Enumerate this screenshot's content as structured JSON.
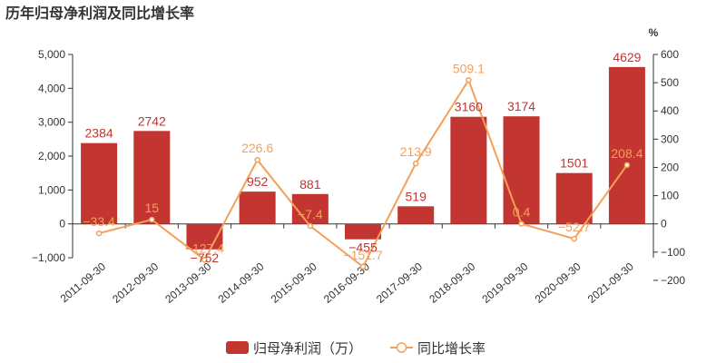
{
  "chart_data": {
    "type": "bar",
    "title": "历年归母净利润及同比增长率",
    "categories": [
      "2011-09-30",
      "2012-09-30",
      "2013-09-30",
      "2014-09-30",
      "2015-09-30",
      "2016-09-30",
      "2017-09-30",
      "2018-09-30",
      "2019-09-30",
      "2020-09-30",
      "2021-09-30"
    ],
    "series": [
      {
        "name": "归母净利润（万）",
        "type": "bar",
        "axis": "left",
        "color": "#c23531",
        "values": [
          2384,
          2742,
          -752,
          952,
          881,
          -455,
          519,
          3160,
          3174,
          1501,
          4629
        ],
        "labels": [
          "2384",
          "2742",
          "−752",
          "952",
          "881",
          "−455",
          "519",
          "3160",
          "3174",
          "1501",
          "4629"
        ]
      },
      {
        "name": "同比增长率",
        "type": "line",
        "axis": "right",
        "color": "#f5a05a",
        "values": [
          -33.4,
          15,
          -127.4,
          226.6,
          -7.4,
          -151.7,
          213.9,
          509.1,
          0.4,
          -52.7,
          208.4
        ],
        "labels": [
          "−33.4",
          "15",
          "−127.4",
          "226.6",
          "−7.4",
          "−151.7",
          "213.9",
          "509.1",
          "0.4",
          "−52.7",
          "208.4"
        ]
      }
    ],
    "y_left": {
      "min": -1000,
      "max": 5000,
      "ticks": [
        -1000,
        0,
        1000,
        2000,
        3000,
        4000,
        5000
      ],
      "tick_labels": [
        "−1,000",
        "0",
        "1,000",
        "2,000",
        "3,000",
        "4,000",
        "5,000"
      ]
    },
    "y_right": {
      "min": -200,
      "max": 600,
      "ticks": [
        -200,
        -100,
        0,
        100,
        200,
        300,
        400,
        500,
        600
      ],
      "tick_labels": [
        "−200",
        "−100",
        "0",
        "100",
        "200",
        "300",
        "400",
        "500",
        "600"
      ],
      "name": "%"
    },
    "grid": false,
    "legend_position": "bottom-center"
  }
}
